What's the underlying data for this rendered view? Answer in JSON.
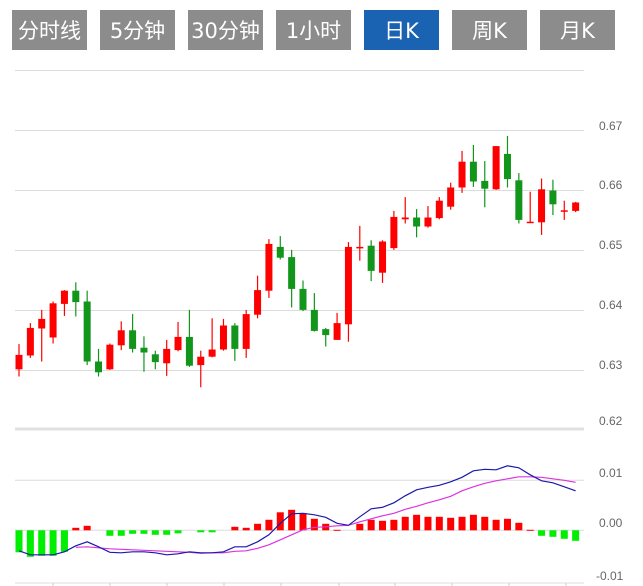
{
  "tabs": [
    {
      "label": "分时线",
      "active": false
    },
    {
      "label": "5分钟",
      "active": false
    },
    {
      "label": "30分钟",
      "active": false
    },
    {
      "label": "1小时",
      "active": false
    },
    {
      "label": "日K",
      "active": true
    },
    {
      "label": "周K",
      "active": false
    },
    {
      "label": "月K",
      "active": false
    }
  ],
  "colors": {
    "up": "#ff0000",
    "down": "#11951b",
    "hist_down": "#00ee00",
    "dif": "#1a1aaa",
    "dea": "#dd33dd",
    "tab": "#8c8c8c",
    "tab_active": "#1a63b3"
  },
  "chart_data": [
    {
      "type": "candlestick",
      "ylim": [
        0.62,
        0.68
      ],
      "yticks": [
        "0.67",
        "0.66",
        "0.65",
        "0.64",
        "0.63",
        "0.62"
      ],
      "grid": true,
      "ohlc": [
        [
          0.6302,
          0.6344,
          0.629,
          0.6326
        ],
        [
          0.6325,
          0.6379,
          0.6321,
          0.6371
        ],
        [
          0.637,
          0.6401,
          0.6315,
          0.6386
        ],
        [
          0.6355,
          0.6415,
          0.6345,
          0.6412
        ],
        [
          0.6411,
          0.6434,
          0.6391,
          0.6433
        ],
        [
          0.6433,
          0.6447,
          0.639,
          0.6414
        ],
        [
          0.6415,
          0.6433,
          0.6309,
          0.6315
        ],
        [
          0.6315,
          0.6336,
          0.629,
          0.6297
        ],
        [
          0.6302,
          0.6345,
          0.6301,
          0.6343
        ],
        [
          0.6342,
          0.6382,
          0.6334,
          0.6367
        ],
        [
          0.6367,
          0.6394,
          0.633,
          0.6336
        ],
        [
          0.6338,
          0.6357,
          0.6298,
          0.633
        ],
        [
          0.6327,
          0.6333,
          0.6302,
          0.6314
        ],
        [
          0.6312,
          0.6351,
          0.6291,
          0.6336
        ],
        [
          0.6334,
          0.6381,
          0.6332,
          0.6356
        ],
        [
          0.6356,
          0.6401,
          0.6306,
          0.6308
        ],
        [
          0.6309,
          0.6333,
          0.6272,
          0.6323
        ],
        [
          0.6323,
          0.6387,
          0.6322,
          0.6335
        ],
        [
          0.6335,
          0.6386,
          0.6333,
          0.6375
        ],
        [
          0.6375,
          0.6379,
          0.6316,
          0.6336
        ],
        [
          0.6336,
          0.6401,
          0.6321,
          0.6394
        ],
        [
          0.6393,
          0.6458,
          0.6387,
          0.6434
        ],
        [
          0.6433,
          0.6519,
          0.6421,
          0.6511
        ],
        [
          0.6506,
          0.6524,
          0.6485,
          0.6488
        ],
        [
          0.6489,
          0.6501,
          0.6405,
          0.6436
        ],
        [
          0.6436,
          0.645,
          0.6399,
          0.6401
        ],
        [
          0.6401,
          0.6429,
          0.6365,
          0.6366
        ],
        [
          0.6369,
          0.6371,
          0.634,
          0.6359
        ],
        [
          0.6351,
          0.6396,
          0.6351,
          0.6379
        ],
        [
          0.6377,
          0.6514,
          0.6348,
          0.6506
        ],
        [
          0.6504,
          0.6541,
          0.6483,
          0.6506
        ],
        [
          0.6508,
          0.6517,
          0.6449,
          0.6466
        ],
        [
          0.6463,
          0.6517,
          0.6446,
          0.6515
        ],
        [
          0.6504,
          0.6566,
          0.6501,
          0.6556
        ],
        [
          0.6552,
          0.6589,
          0.6545,
          0.6555
        ],
        [
          0.6555,
          0.6569,
          0.6522,
          0.654
        ],
        [
          0.654,
          0.6574,
          0.6538,
          0.6555
        ],
        [
          0.6554,
          0.6589,
          0.6552,
          0.6583
        ],
        [
          0.6573,
          0.6613,
          0.6568,
          0.6605
        ],
        [
          0.6605,
          0.6666,
          0.6596,
          0.6648
        ],
        [
          0.6648,
          0.6676,
          0.6606,
          0.6615
        ],
        [
          0.6616,
          0.6649,
          0.6572,
          0.6603
        ],
        [
          0.6602,
          0.6674,
          0.6601,
          0.6674
        ],
        [
          0.6661,
          0.6691,
          0.6605,
          0.6619
        ],
        [
          0.6617,
          0.6629,
          0.6545,
          0.6551
        ],
        [
          0.6547,
          0.6598,
          0.6547,
          0.6548
        ],
        [
          0.6547,
          0.662,
          0.6526,
          0.6602
        ],
        [
          0.66,
          0.6618,
          0.6559,
          0.6577
        ],
        [
          0.6565,
          0.6583,
          0.6551,
          0.6567
        ],
        [
          0.6566,
          0.6581,
          0.6564,
          0.658
        ]
      ]
    },
    {
      "type": "macd",
      "ylim": [
        -0.01,
        0.0195
      ],
      "yticks": [
        "0.01",
        "0.00",
        "-0.01"
      ],
      "grid": true,
      "histogram": [
        -0.0044,
        -0.0053,
        -0.0051,
        -0.0051,
        -0.0043,
        0.0005,
        0.0009,
        0,
        -0.0011,
        -0.0011,
        -0.0007,
        -0.0007,
        -0.0009,
        -0.0009,
        -0.0006,
        0,
        -0.0004,
        -0.0004,
        0,
        0.0007,
        0.0005,
        0.0013,
        0.0021,
        0.0036,
        0.0041,
        0.0034,
        0.0023,
        0.0013,
        0.0001,
        0,
        0.0013,
        0.0021,
        0.0019,
        0.0021,
        0.0027,
        0.0031,
        0.0027,
        0.0027,
        0.0025,
        0.0027,
        0.0031,
        0.0027,
        0.0021,
        0.0023,
        0.0015,
        0.0001,
        -0.0011,
        -0.0013,
        -0.0017,
        -0.0021
      ],
      "dif": [
        -0.0041,
        -0.0049,
        -0.0049,
        -0.0049,
        -0.0043,
        -0.0031,
        -0.0023,
        -0.0033,
        -0.0044,
        -0.0045,
        -0.0043,
        -0.0043,
        -0.0045,
        -0.0049,
        -0.0047,
        -0.0043,
        -0.0045,
        -0.0045,
        -0.0043,
        -0.0033,
        -0.0033,
        -0.0023,
        -0.0009,
        0.0014,
        0.0033,
        0.0034,
        0.0031,
        0.0026,
        0.0014,
        0.001,
        0.0027,
        0.0043,
        0.0046,
        0.0055,
        0.0069,
        0.0081,
        0.0086,
        0.009,
        0.0097,
        0.0106,
        0.0119,
        0.0122,
        0.0121,
        0.0129,
        0.0125,
        0.0111,
        0.0099,
        0.0095,
        0.0087,
        0.0079
      ],
      "dea": [
        null,
        null,
        null,
        null,
        null,
        -0.0034,
        -0.0033,
        -0.0035,
        -0.0037,
        -0.0038,
        -0.0039,
        -0.004,
        -0.0041,
        -0.0042,
        -0.0043,
        -0.0044,
        -0.0046,
        -0.0045,
        -0.0045,
        -0.0042,
        -0.0041,
        -0.0036,
        -0.0029,
        -0.0019,
        -0.0009,
        0.0001,
        0.0006,
        0.0007,
        0.0009,
        0.001,
        0.0017,
        0.0023,
        0.0029,
        0.0034,
        0.0042,
        0.0048,
        0.0055,
        0.0061,
        0.0068,
        0.0079,
        0.0087,
        0.0094,
        0.0099,
        0.0103,
        0.0107,
        0.0107,
        0.0106,
        0.0103,
        0.01,
        0.0096
      ]
    }
  ]
}
